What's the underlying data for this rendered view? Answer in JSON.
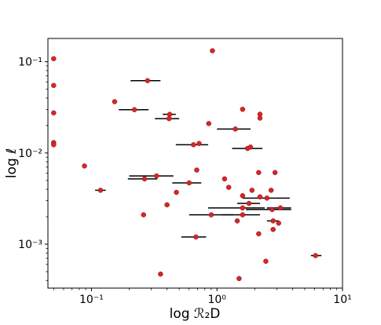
{
  "chart_data": {
    "type": "scatter",
    "title": "",
    "xlabel": "log ℛ₂D",
    "ylabel": "log ℓ",
    "xscale": "log",
    "yscale": "log",
    "xlim": [
      0.045,
      10
    ],
    "ylim": [
      0.00033,
      0.18
    ],
    "grid": false,
    "legend": "none",
    "marker_color": "#d62728",
    "errorbar_color": "#000000",
    "x_ticks": [
      {
        "value": 0.1,
        "label": "10⁻¹"
      },
      {
        "value": 1,
        "label": "10⁰"
      },
      {
        "value": 10,
        "label": "10¹"
      }
    ],
    "y_ticks": [
      {
        "value": 0.001,
        "label": "10⁻³"
      },
      {
        "value": 0.01,
        "label": "10⁻²"
      },
      {
        "value": 0.1,
        "label": "10⁻¹"
      }
    ],
    "points": [
      {
        "x": 0.05,
        "y": 0.108
      },
      {
        "x": 0.05,
        "y": 0.055
      },
      {
        "x": 0.05,
        "y": 0.0275
      },
      {
        "x": 0.05,
        "y": 0.013
      },
      {
        "x": 0.05,
        "y": 0.0123
      },
      {
        "x": 0.088,
        "y": 0.0072
      },
      {
        "x": 0.118,
        "y": 0.0039,
        "xerr": [
          0.107,
          0.13
        ]
      },
      {
        "x": 0.153,
        "y": 0.0365
      },
      {
        "x": 0.22,
        "y": 0.0298,
        "xerr": [
          0.165,
          0.285
        ]
      },
      {
        "x": 0.26,
        "y": 0.0021
      },
      {
        "x": 0.265,
        "y": 0.0052,
        "xerr": [
          0.195,
          0.335
        ]
      },
      {
        "x": 0.28,
        "y": 0.062,
        "xerr": [
          0.205,
          0.355
        ]
      },
      {
        "x": 0.33,
        "y": 0.0056,
        "xerr": [
          0.2,
          0.45
        ]
      },
      {
        "x": 0.355,
        "y": 0.00047
      },
      {
        "x": 0.4,
        "y": 0.0027
      },
      {
        "x": 0.415,
        "y": 0.0238,
        "xerr": [
          0.32,
          0.5
        ]
      },
      {
        "x": 0.42,
        "y": 0.0265,
        "xerr": [
          0.37,
          0.47
        ]
      },
      {
        "x": 0.475,
        "y": 0.0037
      },
      {
        "x": 0.6,
        "y": 0.0047,
        "xerr": [
          0.44,
          0.75
        ]
      },
      {
        "x": 0.65,
        "y": 0.0123,
        "xerr": [
          0.47,
          0.85
        ]
      },
      {
        "x": 0.68,
        "y": 0.0012,
        "xerr": [
          0.52,
          0.82
        ]
      },
      {
        "x": 0.69,
        "y": 0.0065
      },
      {
        "x": 0.72,
        "y": 0.0127
      },
      {
        "x": 0.86,
        "y": 0.021
      },
      {
        "x": 0.9,
        "y": 0.0021,
        "xerr": [
          0.6,
          1.35
        ]
      },
      {
        "x": 0.92,
        "y": 0.132
      },
      {
        "x": 1.15,
        "y": 0.0052
      },
      {
        "x": 1.24,
        "y": 0.0042
      },
      {
        "x": 1.4,
        "y": 0.0183,
        "xerr": [
          1.0,
          1.85
        ]
      },
      {
        "x": 1.45,
        "y": 0.0018
      },
      {
        "x": 1.5,
        "y": 0.00042
      },
      {
        "x": 1.6,
        "y": 0.0301
      },
      {
        "x": 1.6,
        "y": 0.0034
      },
      {
        "x": 1.6,
        "y": 0.0025,
        "xerr": [
          0.85,
          2.4
        ]
      },
      {
        "x": 1.6,
        "y": 0.0021,
        "xerr": [
          1.1,
          2.2
        ]
      },
      {
        "x": 1.75,
        "y": 0.0112,
        "xerr": [
          1.32,
          2.3
        ]
      },
      {
        "x": 1.8,
        "y": 0.0028,
        "xerr": [
          1.45,
          2.2
        ]
      },
      {
        "x": 1.85,
        "y": 0.0116
      },
      {
        "x": 1.9,
        "y": 0.0039
      },
      {
        "x": 2.15,
        "y": 0.0013
      },
      {
        "x": 2.15,
        "y": 0.0061
      },
      {
        "x": 2.2,
        "y": 0.0266
      },
      {
        "x": 2.2,
        "y": 0.0241
      },
      {
        "x": 2.2,
        "y": 0.0033
      },
      {
        "x": 2.45,
        "y": 0.00065
      },
      {
        "x": 2.5,
        "y": 0.0032,
        "xerr": [
          1.6,
          3.8
        ]
      },
      {
        "x": 2.7,
        "y": 0.0039
      },
      {
        "x": 2.75,
        "y": 0.0024,
        "xerr": [
          1.7,
          3.9
        ]
      },
      {
        "x": 2.8,
        "y": 0.0018,
        "xerr": [
          2.5,
          3.1
        ]
      },
      {
        "x": 2.8,
        "y": 0.00145
      },
      {
        "x": 2.9,
        "y": 0.0061
      },
      {
        "x": 3.1,
        "y": 0.0017
      },
      {
        "x": 3.2,
        "y": 0.0025,
        "xerr": [
          2.5,
          3.9
        ]
      },
      {
        "x": 6.1,
        "y": 0.00075,
        "xerr": [
          5.6,
          6.8
        ]
      }
    ]
  }
}
